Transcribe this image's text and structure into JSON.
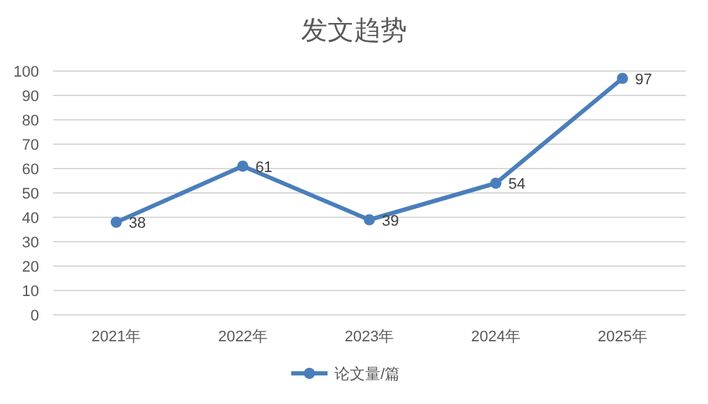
{
  "chart_data": {
    "type": "line",
    "title": "发文趋势",
    "categories": [
      "2021年",
      "2022年",
      "2023年",
      "2024年",
      "2025年"
    ],
    "series": [
      {
        "name": "论文量/篇",
        "color": "#4a7ebb",
        "values": [
          38,
          61,
          39,
          54,
          97
        ]
      }
    ],
    "ylim": [
      0,
      100
    ],
    "yticks": [
      0,
      10,
      20,
      30,
      40,
      50,
      60,
      70,
      80,
      90,
      100
    ],
    "grid": "y",
    "legend": "bottom",
    "marker": "circle",
    "data_labels": true
  }
}
